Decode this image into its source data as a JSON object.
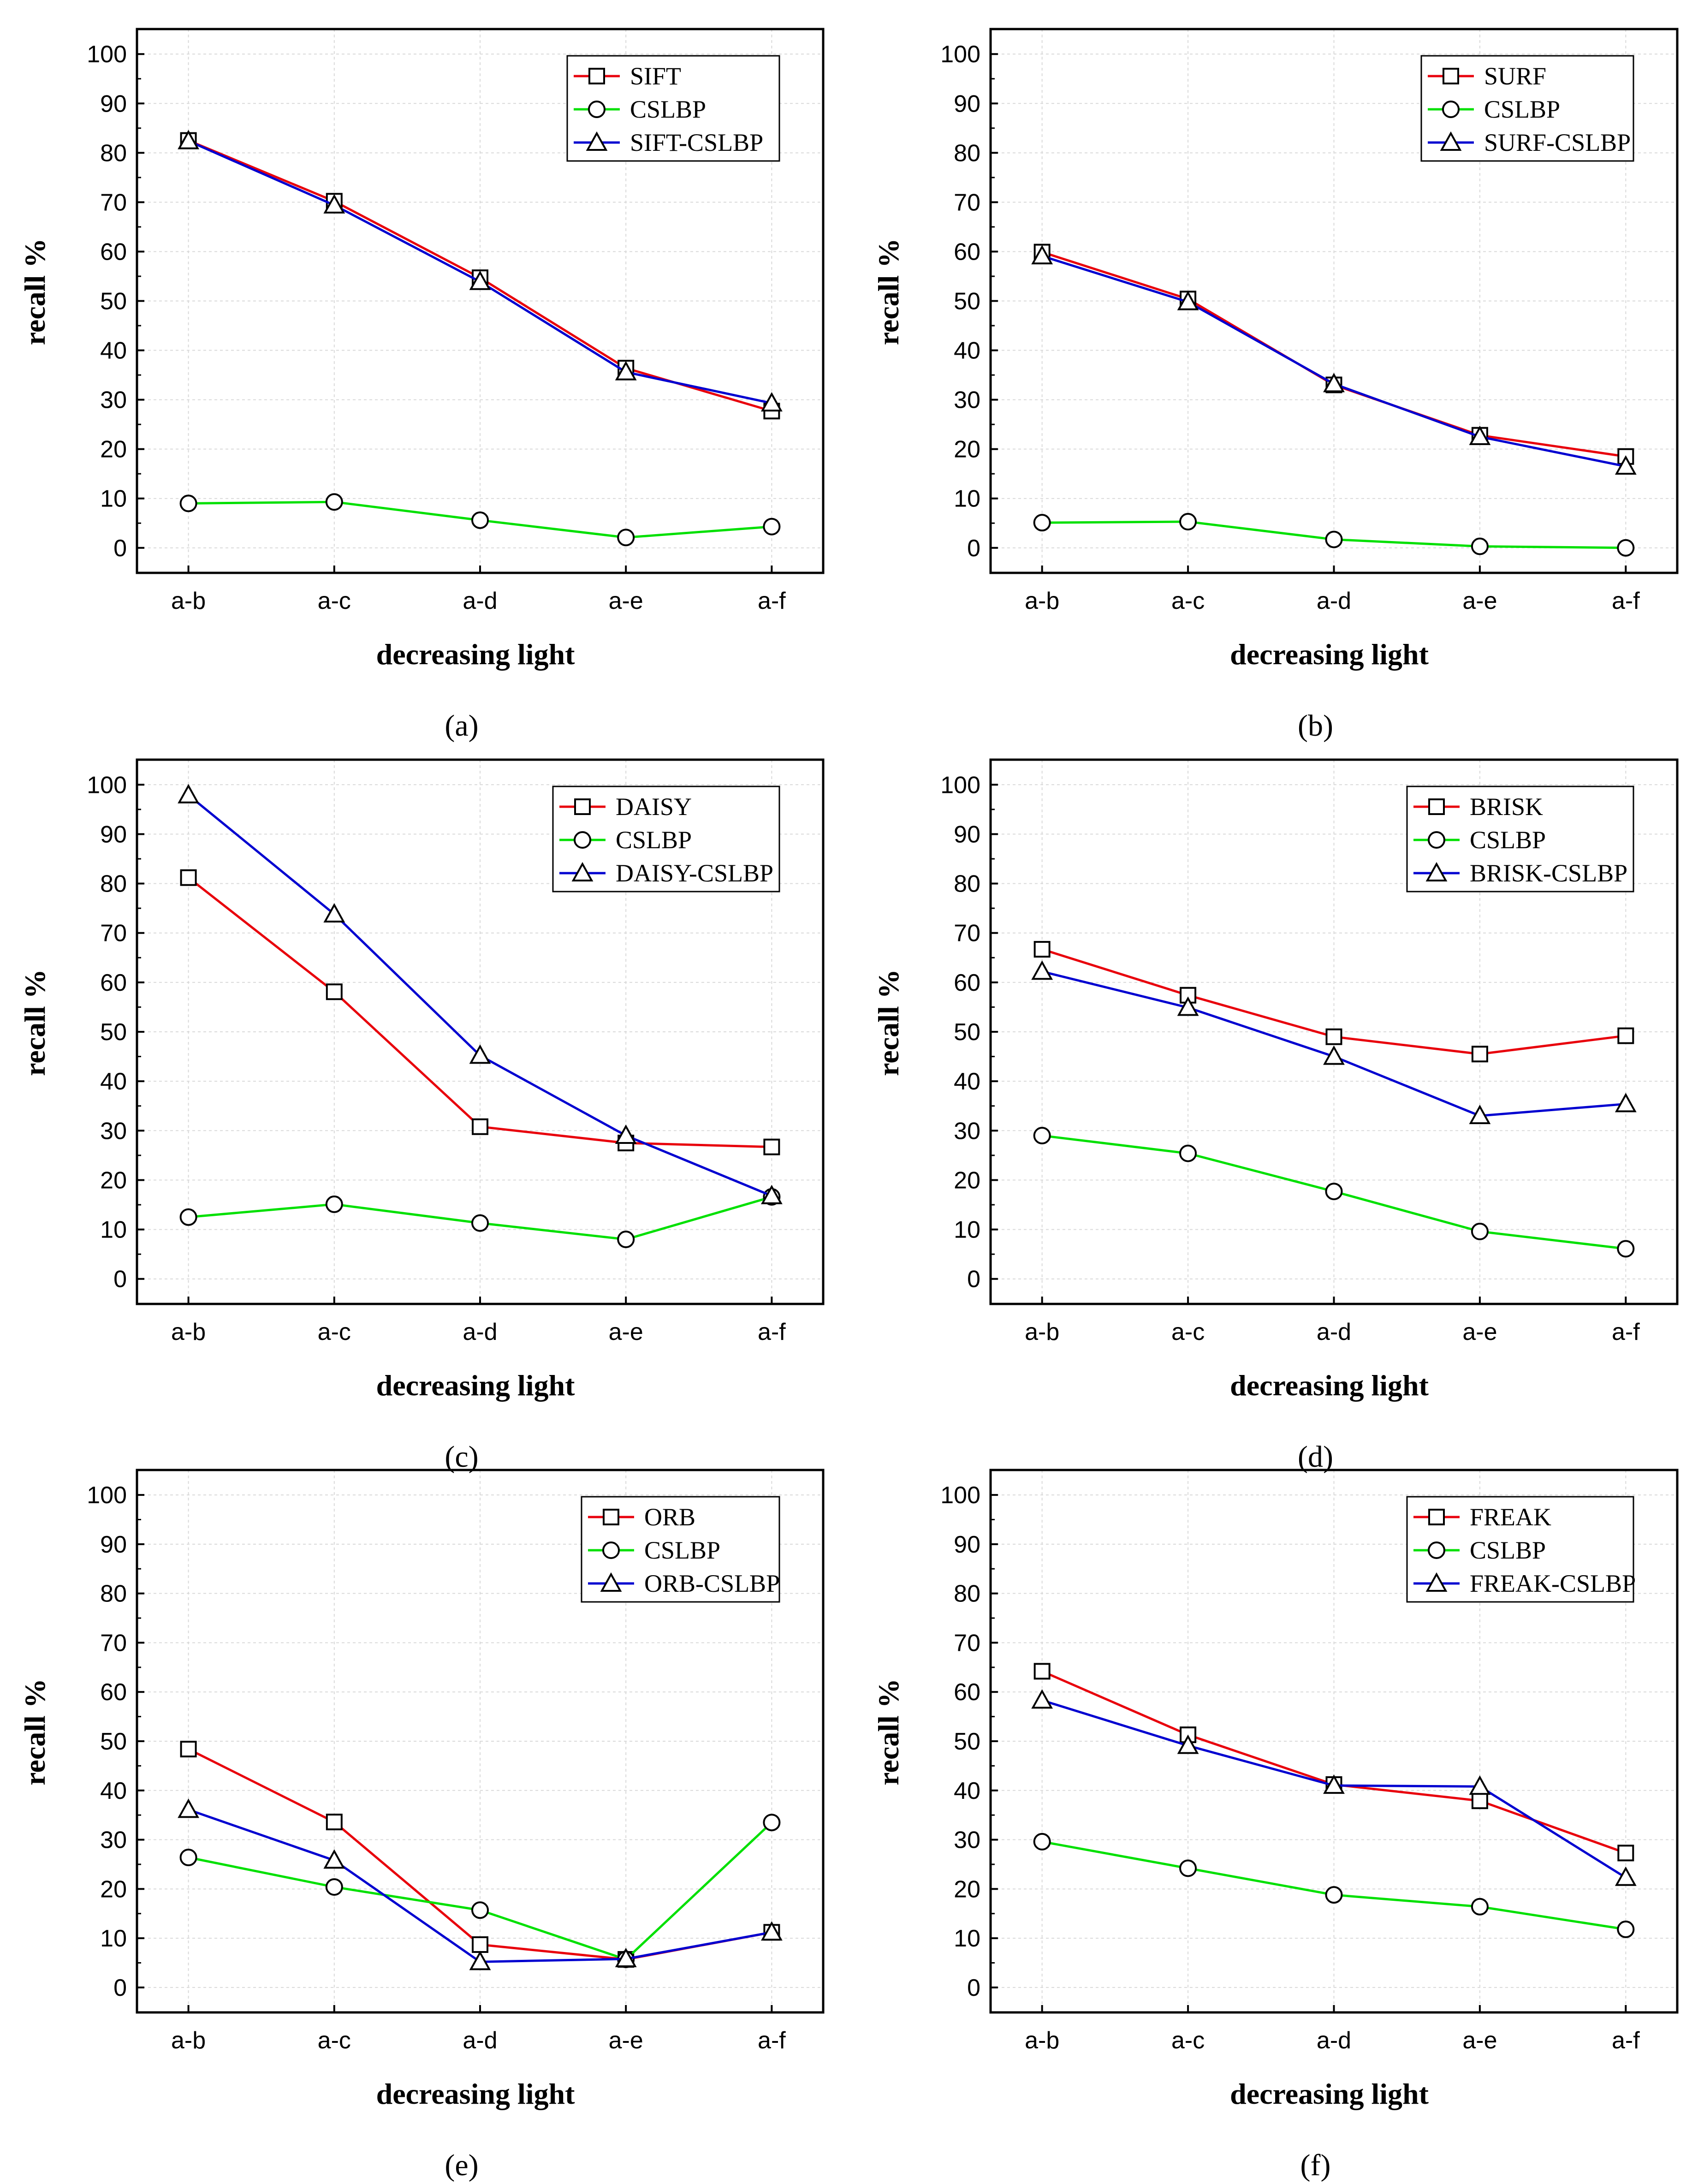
{
  "figure": {
    "panels": [
      {
        "caption": "(a)",
        "letter": "a"
      },
      {
        "caption": "(b)",
        "letter": "b"
      },
      {
        "caption": "(c)",
        "letter": "c"
      },
      {
        "caption": "(d)",
        "letter": "d"
      },
      {
        "caption": "(e)",
        "letter": "e"
      },
      {
        "caption": "(f)",
        "letter": "f"
      }
    ]
  },
  "colors": {
    "red": "#e8000b",
    "green": "#00e000",
    "blue": "#0000d0",
    "grid": "#d9d9d9"
  },
  "chart_data": [
    {
      "type": "line",
      "xlabel": "decreasing light",
      "ylabel": "recall %",
      "ylim": [
        0,
        100
      ],
      "yticks": [
        0,
        10,
        20,
        30,
        40,
        50,
        60,
        70,
        80,
        90,
        100
      ],
      "categories": [
        "a-b",
        "a-c",
        "a-d",
        "a-e",
        "a-f"
      ],
      "legend_position": "top-right",
      "series": [
        {
          "name": "SIFT",
          "color": "#e8000b",
          "marker": "square",
          "values": [
            82.5,
            70.2,
            54.7,
            36.4,
            27.7
          ]
        },
        {
          "name": "CSLBP",
          "color": "#00e000",
          "marker": "circle",
          "values": [
            9.0,
            9.3,
            5.6,
            2.1,
            4.3
          ]
        },
        {
          "name": "SIFT-CSLBP",
          "color": "#0000d0",
          "marker": "triangle",
          "values": [
            82.4,
            69.4,
            53.9,
            35.6,
            29.3
          ]
        }
      ]
    },
    {
      "type": "line",
      "xlabel": "decreasing light",
      "ylabel": "recall %",
      "ylim": [
        0,
        100
      ],
      "yticks": [
        0,
        10,
        20,
        30,
        40,
        50,
        60,
        70,
        80,
        90,
        100
      ],
      "categories": [
        "a-b",
        "a-c",
        "a-d",
        "a-e",
        "a-f"
      ],
      "legend_position": "top-right",
      "series": [
        {
          "name": "SURF",
          "color": "#e8000b",
          "marker": "square",
          "values": [
            59.9,
            50.4,
            33.0,
            22.8,
            18.5
          ]
        },
        {
          "name": "CSLBP",
          "color": "#00e000",
          "marker": "circle",
          "values": [
            5.1,
            5.3,
            1.7,
            0.3,
            0.0
          ]
        },
        {
          "name": "SURF-CSLBP",
          "color": "#0000d0",
          "marker": "triangle",
          "values": [
            59.1,
            49.8,
            33.2,
            22.5,
            16.5
          ]
        }
      ]
    },
    {
      "type": "line",
      "xlabel": "decreasing light",
      "ylabel": "recall %",
      "ylim": [
        0,
        100
      ],
      "yticks": [
        0,
        10,
        20,
        30,
        40,
        50,
        60,
        70,
        80,
        90,
        100
      ],
      "categories": [
        "a-b",
        "a-c",
        "a-d",
        "a-e",
        "a-f"
      ],
      "legend_position": "top-right",
      "series": [
        {
          "name": "DAISY",
          "color": "#e8000b",
          "marker": "square",
          "values": [
            81.2,
            58.1,
            30.8,
            27.5,
            26.7
          ]
        },
        {
          "name": "CSLBP",
          "color": "#00e000",
          "marker": "circle",
          "values": [
            12.5,
            15.1,
            11.3,
            8.0,
            16.6
          ]
        },
        {
          "name": "DAISY-CSLBP",
          "color": "#0000d0",
          "marker": "triangle",
          "values": [
            97.9,
            73.8,
            45.2,
            29.0,
            16.8
          ]
        }
      ]
    },
    {
      "type": "line",
      "xlabel": "decreasing light",
      "ylabel": "recall %",
      "ylim": [
        0,
        100
      ],
      "yticks": [
        0,
        10,
        20,
        30,
        40,
        50,
        60,
        70,
        80,
        90,
        100
      ],
      "categories": [
        "a-b",
        "a-c",
        "a-d",
        "a-e",
        "a-f"
      ],
      "legend_position": "top-right",
      "series": [
        {
          "name": "BRISK",
          "color": "#e8000b",
          "marker": "square",
          "values": [
            66.7,
            57.4,
            49.0,
            45.5,
            49.2
          ]
        },
        {
          "name": "CSLBP",
          "color": "#00e000",
          "marker": "circle",
          "values": [
            29.0,
            25.4,
            17.7,
            9.6,
            6.1
          ]
        },
        {
          "name": "BRISK-CSLBP",
          "color": "#0000d0",
          "marker": "triangle",
          "values": [
            62.2,
            54.9,
            45.0,
            33.0,
            35.4
          ]
        }
      ]
    },
    {
      "type": "line",
      "xlabel": "decreasing light",
      "ylabel": "recall %",
      "ylim": [
        0,
        100
      ],
      "yticks": [
        0,
        10,
        20,
        30,
        40,
        50,
        60,
        70,
        80,
        90,
        100
      ],
      "categories": [
        "a-b",
        "a-c",
        "a-d",
        "a-e",
        "a-f"
      ],
      "legend_position": "top-right",
      "series": [
        {
          "name": "ORB",
          "color": "#e8000b",
          "marker": "square",
          "values": [
            48.4,
            33.6,
            8.7,
            5.7,
            11.2
          ]
        },
        {
          "name": "CSLBP",
          "color": "#00e000",
          "marker": "circle",
          "values": [
            26.4,
            20.4,
            15.7,
            5.7,
            33.5
          ]
        },
        {
          "name": "ORB-CSLBP",
          "color": "#0000d0",
          "marker": "triangle",
          "values": [
            36.1,
            25.8,
            5.2,
            5.8,
            11.2
          ]
        }
      ]
    },
    {
      "type": "line",
      "xlabel": "decreasing light",
      "ylabel": "recall %",
      "ylim": [
        0,
        100
      ],
      "yticks": [
        0,
        10,
        20,
        30,
        40,
        50,
        60,
        70,
        80,
        90,
        100
      ],
      "categories": [
        "a-b",
        "a-c",
        "a-d",
        "a-e",
        "a-f"
      ],
      "legend_position": "top-right",
      "series": [
        {
          "name": "FREAK",
          "color": "#e8000b",
          "marker": "square",
          "values": [
            64.2,
            51.3,
            41.2,
            37.9,
            27.3
          ]
        },
        {
          "name": "CSLBP",
          "color": "#00e000",
          "marker": "circle",
          "values": [
            29.6,
            24.2,
            18.8,
            16.4,
            11.8
          ]
        },
        {
          "name": "FREAK-CSLBP",
          "color": "#0000d0",
          "marker": "triangle",
          "values": [
            58.3,
            49.1,
            41.0,
            40.8,
            22.3
          ]
        }
      ]
    }
  ]
}
